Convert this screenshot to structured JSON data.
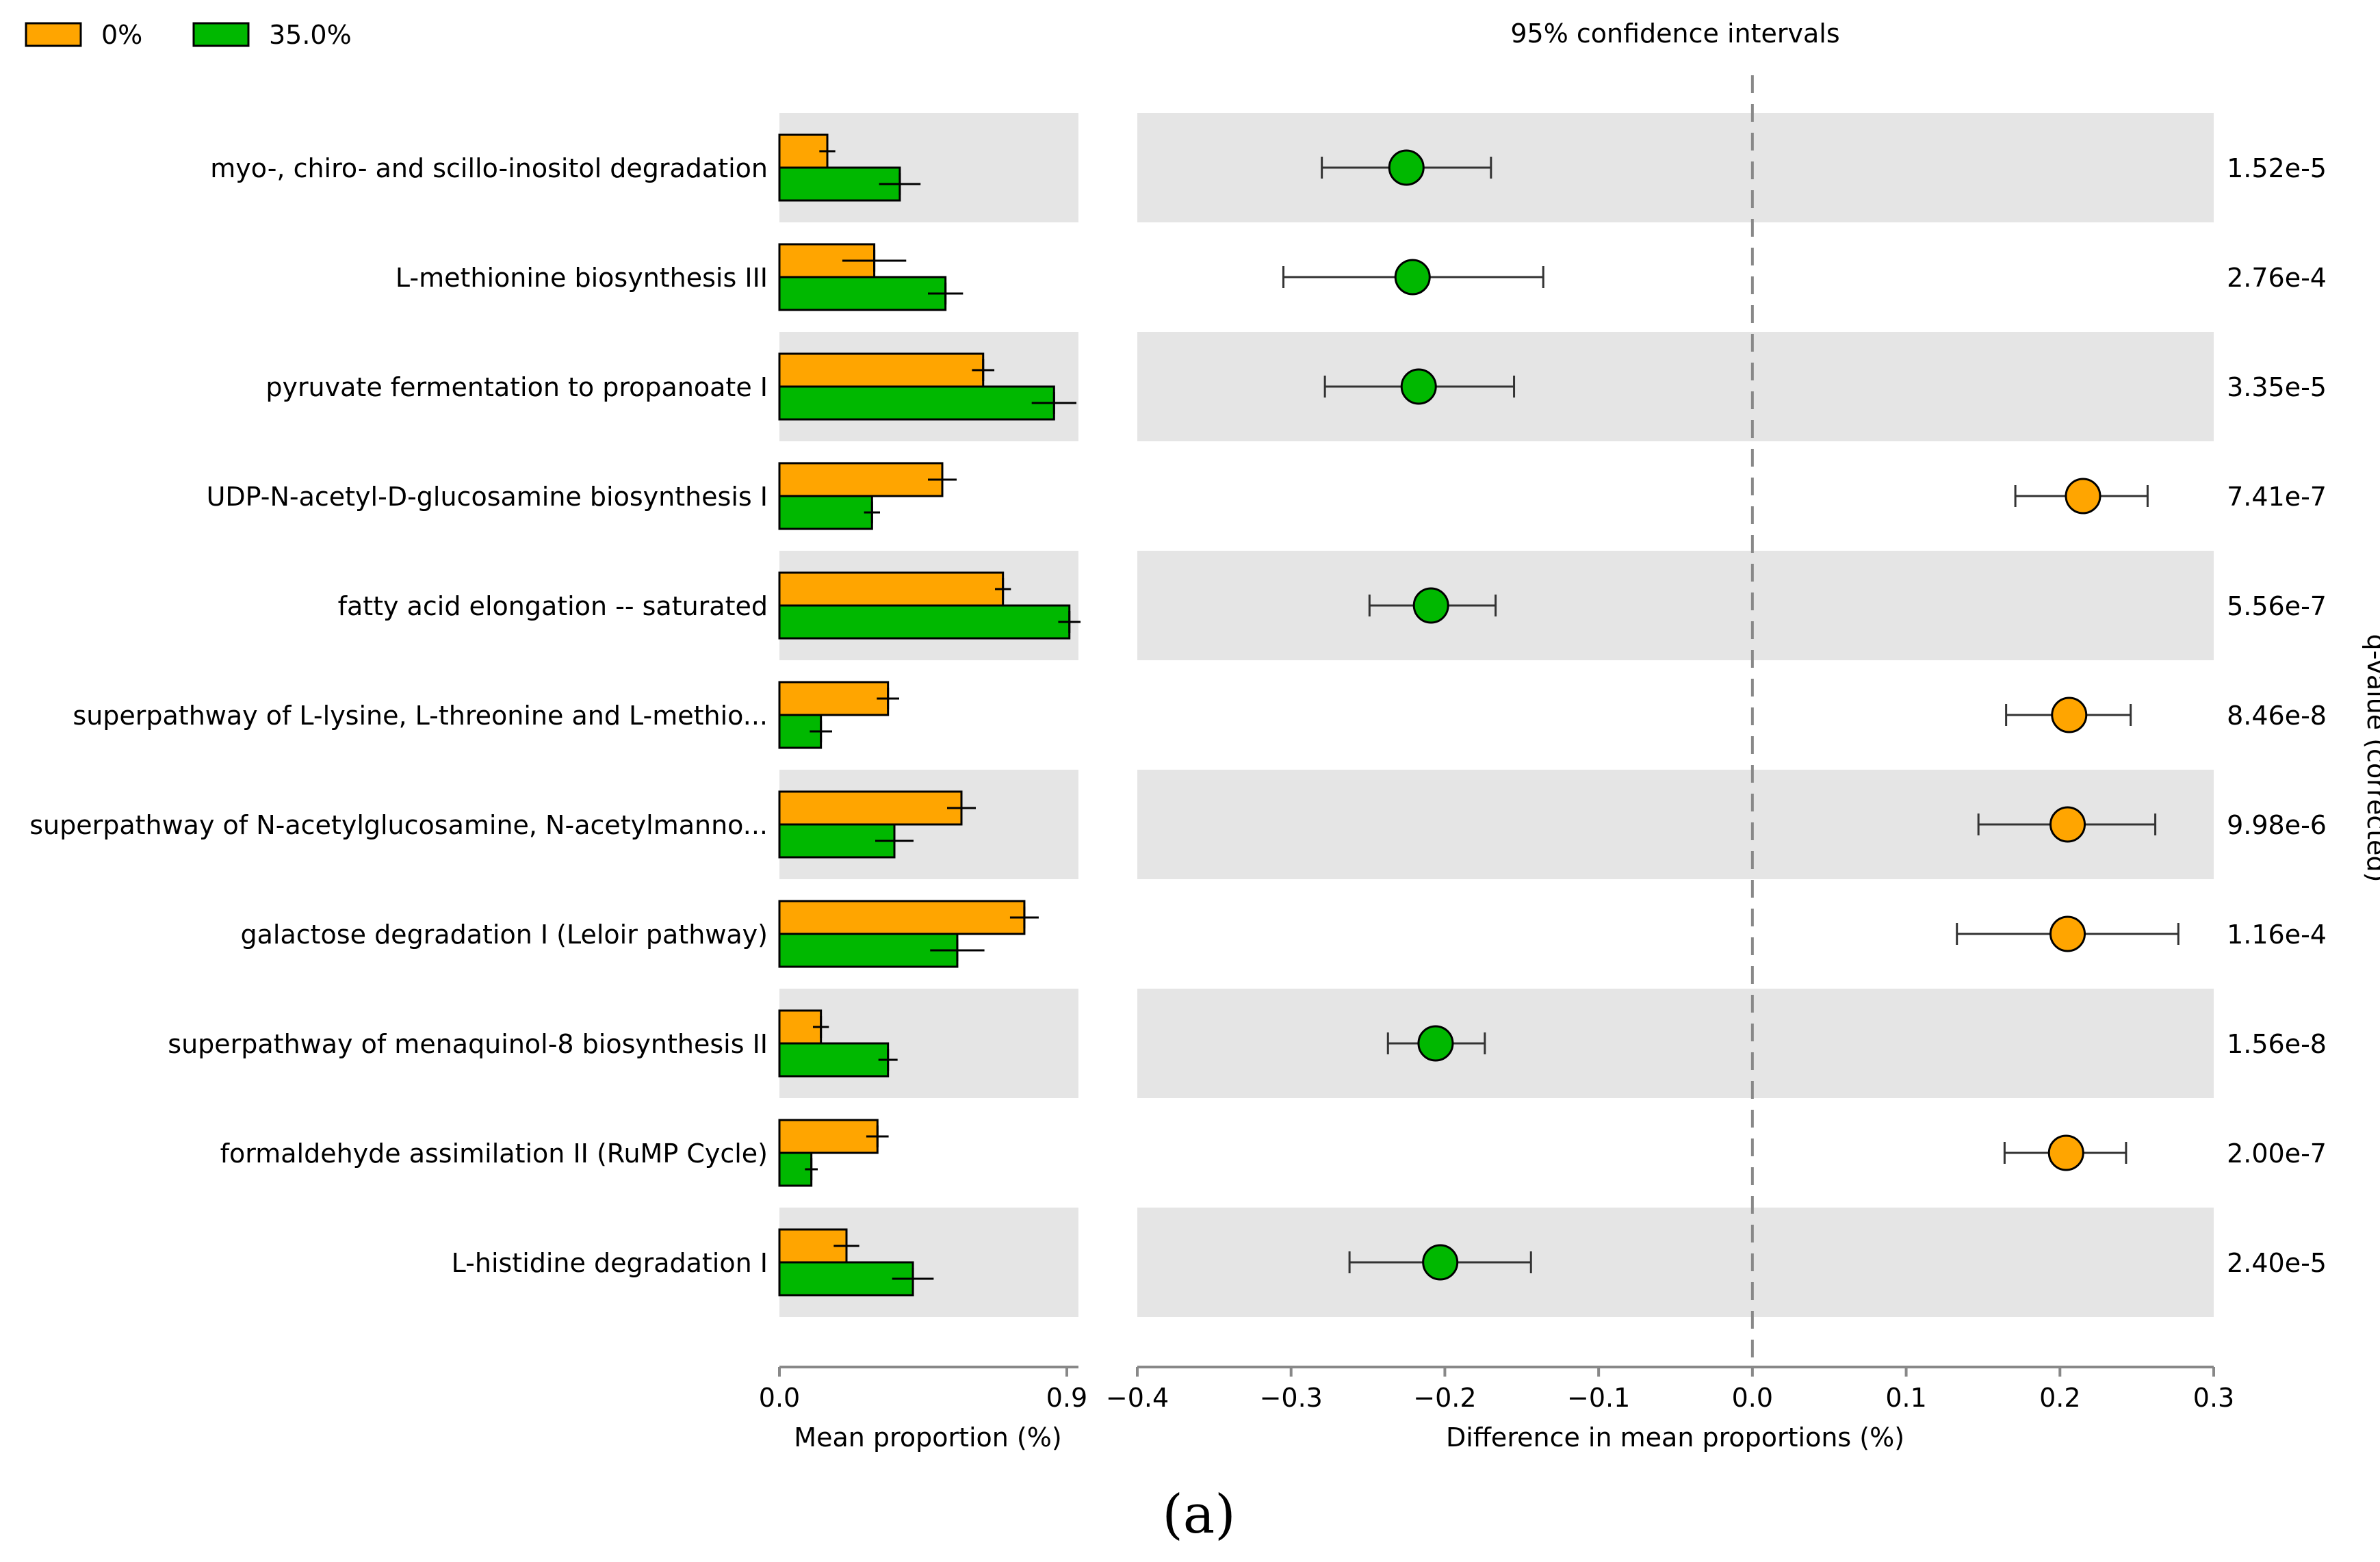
{
  "panel_label": "(a)",
  "colors": {
    "group0": "#ffa500",
    "group1": "#00b800",
    "band": "#e5e5e5",
    "axis": "#888888"
  },
  "chart_data": [
    {
      "type": "bar",
      "xlabel": "Mean proportion (%)",
      "xlim": [
        0.0,
        0.95
      ],
      "xticks": [
        "0.0",
        "0.9"
      ],
      "xtick_values": [
        0.0,
        0.9
      ],
      "legend": {
        "placement": "top-left"
      },
      "categories": [
        "myo-, chiro- and scillo-inositol degradation",
        "L-methionine biosynthesis III",
        "pyruvate fermentation to propanoate I",
        "UDP-N-acetyl-D-glucosamine biosynthesis I",
        "fatty acid elongation -- saturated",
        "superpathway of L-lysine, L-threonine and L-methio...",
        "superpathway of N-acetylglucosamine, N-acetylmanno...",
        "galactose degradation I (Leloir pathway)",
        "superpathway of menaquinol-8 biosynthesis II",
        "formaldehyde assimilation II (RuMP Cycle)",
        "L-histidine degradation I"
      ],
      "series": [
        {
          "name": "0%",
          "values": [
            0.15,
            0.297,
            0.638,
            0.51,
            0.7,
            0.34,
            0.57,
            0.767,
            0.13,
            0.307,
            0.21
          ],
          "errors": [
            0.025,
            0.1,
            0.035,
            0.045,
            0.025,
            0.035,
            0.045,
            0.045,
            0.025,
            0.035,
            0.04
          ]
        },
        {
          "name": "35.0%",
          "values": [
            0.377,
            0.52,
            0.86,
            0.29,
            0.908,
            0.13,
            0.36,
            0.557,
            0.34,
            0.1,
            0.418
          ],
          "errors": [
            0.065,
            0.055,
            0.07,
            0.025,
            0.035,
            0.035,
            0.06,
            0.085,
            0.03,
            0.02,
            0.065
          ]
        }
      ]
    },
    {
      "type": "scatter",
      "title": "95% confidence intervals",
      "xlabel": "Difference in mean proportions (%)",
      "ylabel": "q-value (corrected)",
      "xlim": [
        -0.4,
        0.3
      ],
      "xticks": [
        "−0.4",
        "−0.3",
        "−0.2",
        "−0.1",
        "0.0",
        "0.1",
        "0.2",
        "0.3"
      ],
      "xtick_values": [
        -0.4,
        -0.3,
        -0.2,
        -0.1,
        0.0,
        0.1,
        0.2,
        0.3
      ],
      "grid": false,
      "reference_line_x": 0.0,
      "points": [
        {
          "x": -0.225,
          "ci": [
            -0.28,
            -0.17
          ],
          "group": "35.0%",
          "q": "1.52e-5"
        },
        {
          "x": -0.221,
          "ci": [
            -0.305,
            -0.136
          ],
          "group": "35.0%",
          "q": "2.76e-4"
        },
        {
          "x": -0.217,
          "ci": [
            -0.278,
            -0.155
          ],
          "group": "35.0%",
          "q": "3.35e-5"
        },
        {
          "x": 0.215,
          "ci": [
            0.171,
            0.257
          ],
          "group": "0%",
          "q": "7.41e-7"
        },
        {
          "x": -0.209,
          "ci": [
            -0.249,
            -0.167
          ],
          "group": "35.0%",
          "q": "5.56e-7"
        },
        {
          "x": 0.206,
          "ci": [
            0.165,
            0.246
          ],
          "group": "0%",
          "q": "8.46e-8"
        },
        {
          "x": 0.205,
          "ci": [
            0.147,
            0.262
          ],
          "group": "0%",
          "q": "9.98e-6"
        },
        {
          "x": 0.205,
          "ci": [
            0.133,
            0.277
          ],
          "group": "0%",
          "q": "1.16e-4"
        },
        {
          "x": -0.206,
          "ci": [
            -0.237,
            -0.174
          ],
          "group": "35.0%",
          "q": "1.56e-8"
        },
        {
          "x": 0.204,
          "ci": [
            0.164,
            0.243
          ],
          "group": "0%",
          "q": "2.00e-7"
        },
        {
          "x": -0.203,
          "ci": [
            -0.262,
            -0.144
          ],
          "group": "35.0%",
          "q": "2.40e-5"
        }
      ]
    }
  ]
}
